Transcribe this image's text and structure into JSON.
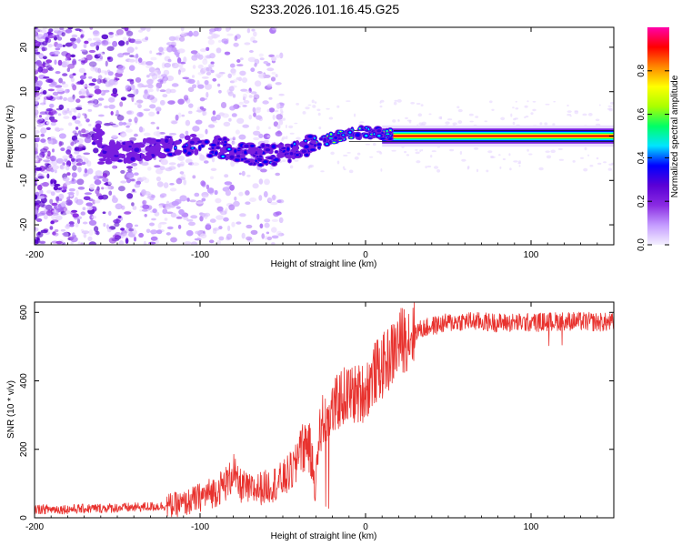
{
  "figure_title": "S233.2026.101.16.45.G25",
  "colors": {
    "snr_line": "#e8322e",
    "axis": "#000000",
    "background": "#ffffff"
  },
  "chart_data": [
    {
      "type": "heatmap",
      "title": "S233.2026.101.16.45.G25",
      "xlabel": "Height of straight line (km)",
      "ylabel": "Frequency (Hz)",
      "xlim": [
        -200,
        150
      ],
      "ylim": [
        -24.5,
        24.5
      ],
      "xticks": [
        -200,
        -100,
        0,
        100
      ],
      "xtick_labels": [
        "-200",
        "-100",
        "0",
        "100"
      ],
      "yticks": [
        -20,
        -10,
        0,
        10,
        20
      ],
      "ytick_labels": [
        "-20",
        "-10",
        "0",
        "10",
        "20"
      ],
      "colorbar": {
        "label": "Normalized spectral amplitude",
        "range": [
          0,
          1
        ],
        "ticks": [
          0.0,
          0.2,
          0.4,
          0.6,
          0.8
        ],
        "tick_labels": [
          "0.0",
          "0.2",
          "0.4",
          "0.6",
          "0.8"
        ],
        "colormap": [
          "#f4f0ff",
          "#c49bff",
          "#8a2be2",
          "#5a00d6",
          "#0000ff",
          "#00e5ff",
          "#00ff66",
          "#aaff00",
          "#ffff00",
          "#ff8800",
          "#ff0000",
          "#ff00aa"
        ]
      },
      "ridge": {
        "description": "frequency-centroid track vs height",
        "x": [
          -160,
          -140,
          -120,
          -100,
          -80,
          -70,
          -60,
          -50,
          -40,
          -30,
          -20,
          -10,
          0,
          10,
          20,
          50,
          100,
          150
        ],
        "y": [
          -4,
          -3.5,
          -2.5,
          -2,
          -3,
          -4,
          -4.5,
          -4,
          -3,
          -2,
          -0.5,
          0.5,
          1,
          0.5,
          0,
          0,
          0,
          0
        ]
      }
    },
    {
      "type": "line",
      "xlabel": "Height of straight line (km)",
      "ylabel": "SNR (10 * v/v)",
      "xlim": [
        -200,
        150
      ],
      "ylim": [
        0,
        630
      ],
      "xticks": [
        -200,
        -100,
        0,
        100
      ],
      "xtick_labels": [
        "-200",
        "-100",
        "0",
        "100"
      ],
      "yticks": [
        0,
        200,
        400,
        600
      ],
      "ytick_labels": [
        "0",
        "200",
        "400",
        "600"
      ],
      "series": [
        {
          "name": "SNR",
          "x": [
            -200,
            -180,
            -160,
            -140,
            -120,
            -110,
            -100,
            -90,
            -82,
            -80,
            -78,
            -70,
            -60,
            -50,
            -42,
            -40,
            -38,
            -35,
            -32,
            -30,
            -28,
            -25,
            -20,
            -15,
            -10,
            -5,
            0,
            5,
            10,
            15,
            20,
            25,
            30,
            40,
            50,
            60,
            80,
            100,
            120,
            150
          ],
          "y": [
            25,
            25,
            28,
            30,
            35,
            40,
            60,
            80,
            110,
            150,
            100,
            80,
            90,
            110,
            150,
            230,
            200,
            230,
            150,
            80,
            260,
            290,
            310,
            350,
            360,
            360,
            370,
            420,
            440,
            470,
            510,
            530,
            545,
            560,
            570,
            575,
            570,
            570,
            575,
            570
          ]
        }
      ]
    }
  ]
}
